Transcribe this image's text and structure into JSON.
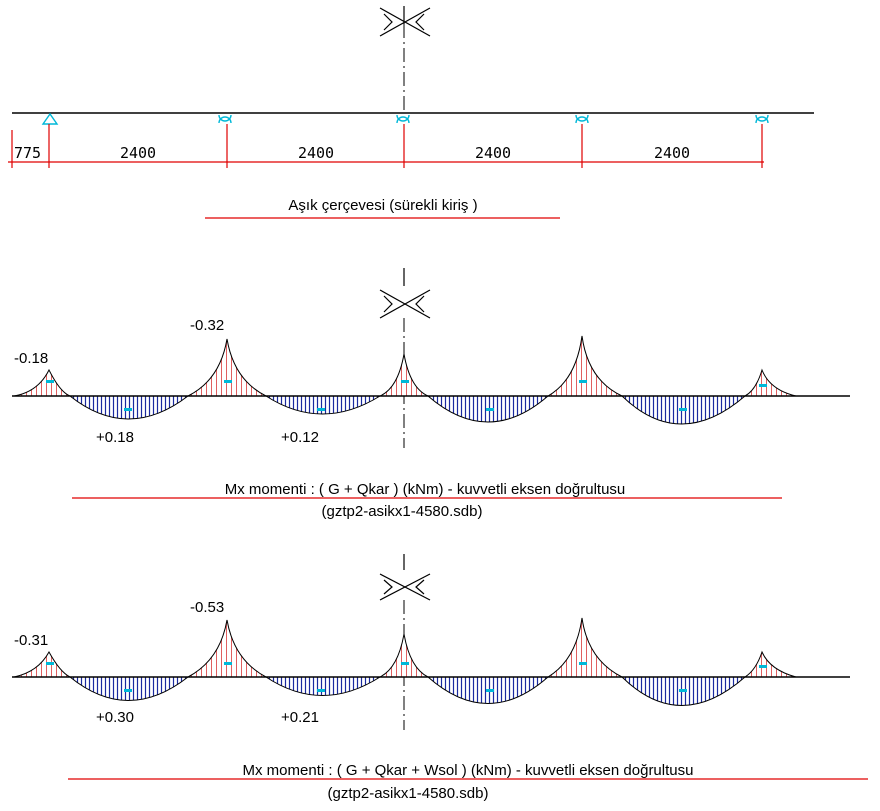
{
  "structure": {
    "first_span": "775",
    "spans": [
      "2400",
      "2400",
      "2400",
      "2400"
    ],
    "caption": "Aşık çerçevesi (sürekli kiriş )"
  },
  "diagram_1": {
    "labels": [
      "-0.18",
      "-0.32",
      "+0.18",
      "+0.12"
    ],
    "caption_line1": "Mx momenti : ( G + Qkar ) (kNm) - kuvvetli eksen doğrultusu",
    "caption_line2": "(gztp2-asikx1-4580.sdb)"
  },
  "diagram_2": {
    "labels": [
      "-0.31",
      "-0.53",
      "+0.30",
      "+0.21"
    ],
    "caption_line1": "Mx momenti : ( G + Qkar + Wsol ) (kNm) - kuvvetli eksen doğrultusu",
    "caption_line2": "(gztp2-asikx1-4580.sdb)"
  },
  "colors": {
    "axis": "#000000",
    "dimension": "#e00000",
    "negative_fill": "#e06060",
    "positive_fill": "#1a2aa0",
    "support": "#00b8d8"
  }
}
